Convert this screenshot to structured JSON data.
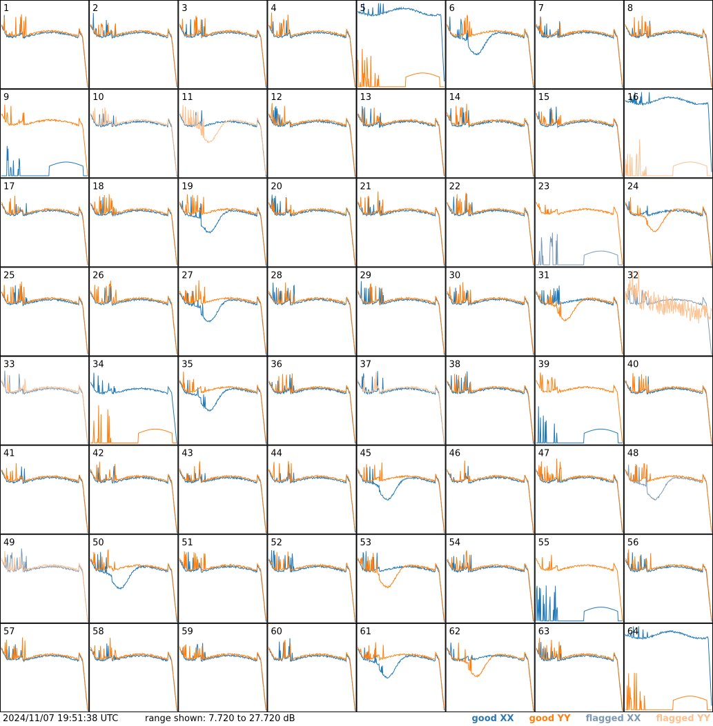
{
  "footer": {
    "timestamp": "2024/11/07 19:51:38 UTC",
    "range_label": "range shown: 7.720 to 27.720 dB"
  },
  "legend": [
    {
      "text": "good XX",
      "color": "#2e78b0"
    },
    {
      "text": "good YY",
      "color": "#ff7f0e"
    },
    {
      "text": "flagged XX",
      "color": "#7d9ab4"
    },
    {
      "text": "flagged YY",
      "color": "#fdc08f"
    }
  ],
  "colors": {
    "good_xx": "#1f77b4",
    "good_yy": "#ff7f0e",
    "flagged_xx": "#7d9ab4",
    "flagged_yy": "#fdc08f"
  },
  "chart_data": {
    "type": "line",
    "grid": "8x8",
    "ylim": [
      7.72,
      27.72
    ],
    "y_unit": "dB",
    "panels": [
      {
        "id": "1",
        "xx": "good",
        "yy": "good",
        "shape": "ok"
      },
      {
        "id": "2",
        "xx": "good",
        "yy": "good",
        "shape": "ok"
      },
      {
        "id": "3",
        "xx": "good",
        "yy": "good",
        "shape": "ok"
      },
      {
        "id": "4",
        "xx": "good",
        "yy": "good",
        "shape": "ok"
      },
      {
        "id": "5",
        "xx": "good",
        "yy": "good",
        "shape": "yy_low"
      },
      {
        "id": "6",
        "xx": "good",
        "yy": "good",
        "shape": "xx_dip"
      },
      {
        "id": "7",
        "xx": "good",
        "yy": "good",
        "shape": "ok"
      },
      {
        "id": "8",
        "xx": "good",
        "yy": "good",
        "shape": "ok"
      },
      {
        "id": "9",
        "xx": "good",
        "yy": "good",
        "shape": "xx_dead"
      },
      {
        "id": "10",
        "xx": "good",
        "yy": "flagged",
        "shape": "ok"
      },
      {
        "id": "11",
        "xx": "good",
        "yy": "flagged",
        "shape": "yy_dip"
      },
      {
        "id": "12",
        "xx": "good",
        "yy": "good",
        "shape": "ok"
      },
      {
        "id": "13",
        "xx": "good",
        "yy": "good",
        "shape": "ok"
      },
      {
        "id": "14",
        "xx": "good",
        "yy": "good",
        "shape": "ok"
      },
      {
        "id": "15",
        "xx": "good",
        "yy": "good",
        "shape": "ok"
      },
      {
        "id": "16",
        "xx": "good",
        "yy": "flagged",
        "shape": "yy_low"
      },
      {
        "id": "17",
        "xx": "good",
        "yy": "good",
        "shape": "ok"
      },
      {
        "id": "18",
        "xx": "good",
        "yy": "good",
        "shape": "ok"
      },
      {
        "id": "19",
        "xx": "good",
        "yy": "good",
        "shape": "xx_dip"
      },
      {
        "id": "20",
        "xx": "good",
        "yy": "good",
        "shape": "ok"
      },
      {
        "id": "21",
        "xx": "good",
        "yy": "good",
        "shape": "ok"
      },
      {
        "id": "22",
        "xx": "good",
        "yy": "good",
        "shape": "ok"
      },
      {
        "id": "23",
        "xx": "flagged",
        "yy": "good",
        "shape": "xx_dead"
      },
      {
        "id": "24",
        "xx": "good",
        "yy": "good",
        "shape": "yy_dip"
      },
      {
        "id": "25",
        "xx": "good",
        "yy": "good",
        "shape": "ok"
      },
      {
        "id": "26",
        "xx": "good",
        "yy": "good",
        "shape": "ok"
      },
      {
        "id": "27",
        "xx": "good",
        "yy": "good",
        "shape": "xx_dip"
      },
      {
        "id": "28",
        "xx": "good",
        "yy": "good",
        "shape": "ok"
      },
      {
        "id": "29",
        "xx": "good",
        "yy": "good",
        "shape": "ok"
      },
      {
        "id": "30",
        "xx": "good",
        "yy": "good",
        "shape": "ok"
      },
      {
        "id": "31",
        "xx": "good",
        "yy": "good",
        "shape": "yy_dip"
      },
      {
        "id": "32",
        "xx": "flagged",
        "yy": "flagged",
        "shape": "flag_noisy"
      },
      {
        "id": "33",
        "xx": "flagged",
        "yy": "flagged",
        "shape": "ok"
      },
      {
        "id": "34",
        "xx": "good",
        "yy": "good",
        "shape": "yy_dead"
      },
      {
        "id": "35",
        "xx": "good",
        "yy": "good",
        "shape": "xx_dip"
      },
      {
        "id": "36",
        "xx": "good",
        "yy": "good",
        "shape": "ok"
      },
      {
        "id": "37",
        "xx": "good",
        "yy": "flagged",
        "shape": "ok"
      },
      {
        "id": "38",
        "xx": "good",
        "yy": "good",
        "shape": "ok"
      },
      {
        "id": "39",
        "xx": "good",
        "yy": "good",
        "shape": "xx_spike"
      },
      {
        "id": "40",
        "xx": "good",
        "yy": "good",
        "shape": "ok"
      },
      {
        "id": "41",
        "xx": "good",
        "yy": "good",
        "shape": "ok"
      },
      {
        "id": "42",
        "xx": "good",
        "yy": "good",
        "shape": "ok"
      },
      {
        "id": "43",
        "xx": "good",
        "yy": "good",
        "shape": "ok"
      },
      {
        "id": "44",
        "xx": "good",
        "yy": "good",
        "shape": "ok"
      },
      {
        "id": "45",
        "xx": "good",
        "yy": "good",
        "shape": "xx_dip"
      },
      {
        "id": "46",
        "xx": "good",
        "yy": "good",
        "shape": "ok"
      },
      {
        "id": "47",
        "xx": "good",
        "yy": "good",
        "shape": "ok"
      },
      {
        "id": "48",
        "xx": "flagged",
        "yy": "good",
        "shape": "xx_dip"
      },
      {
        "id": "49",
        "xx": "flagged",
        "yy": "flagged",
        "shape": "ok"
      },
      {
        "id": "50",
        "xx": "good",
        "yy": "good",
        "shape": "xx_dip"
      },
      {
        "id": "51",
        "xx": "good",
        "yy": "good",
        "shape": "ok"
      },
      {
        "id": "52",
        "xx": "good",
        "yy": "good",
        "shape": "ok"
      },
      {
        "id": "53",
        "xx": "good",
        "yy": "good",
        "shape": "yy_dip"
      },
      {
        "id": "54",
        "xx": "good",
        "yy": "good",
        "shape": "ok"
      },
      {
        "id": "55",
        "xx": "good",
        "yy": "good",
        "shape": "xx_dead"
      },
      {
        "id": "56",
        "xx": "good",
        "yy": "good",
        "shape": "ok"
      },
      {
        "id": "57",
        "xx": "good",
        "yy": "good",
        "shape": "ok"
      },
      {
        "id": "58",
        "xx": "good",
        "yy": "good",
        "shape": "ok"
      },
      {
        "id": "59",
        "xx": "good",
        "yy": "good",
        "shape": "ok"
      },
      {
        "id": "60",
        "xx": "good",
        "yy": "good",
        "shape": "ok"
      },
      {
        "id": "61",
        "xx": "good",
        "yy": "good",
        "shape": "xx_dip"
      },
      {
        "id": "62",
        "xx": "good",
        "yy": "good",
        "shape": "yy_dip"
      },
      {
        "id": "63",
        "xx": "good",
        "yy": "good",
        "shape": "ok"
      },
      {
        "id": "64",
        "xx": "good",
        "yy": "good",
        "shape": "yy_low"
      }
    ]
  }
}
